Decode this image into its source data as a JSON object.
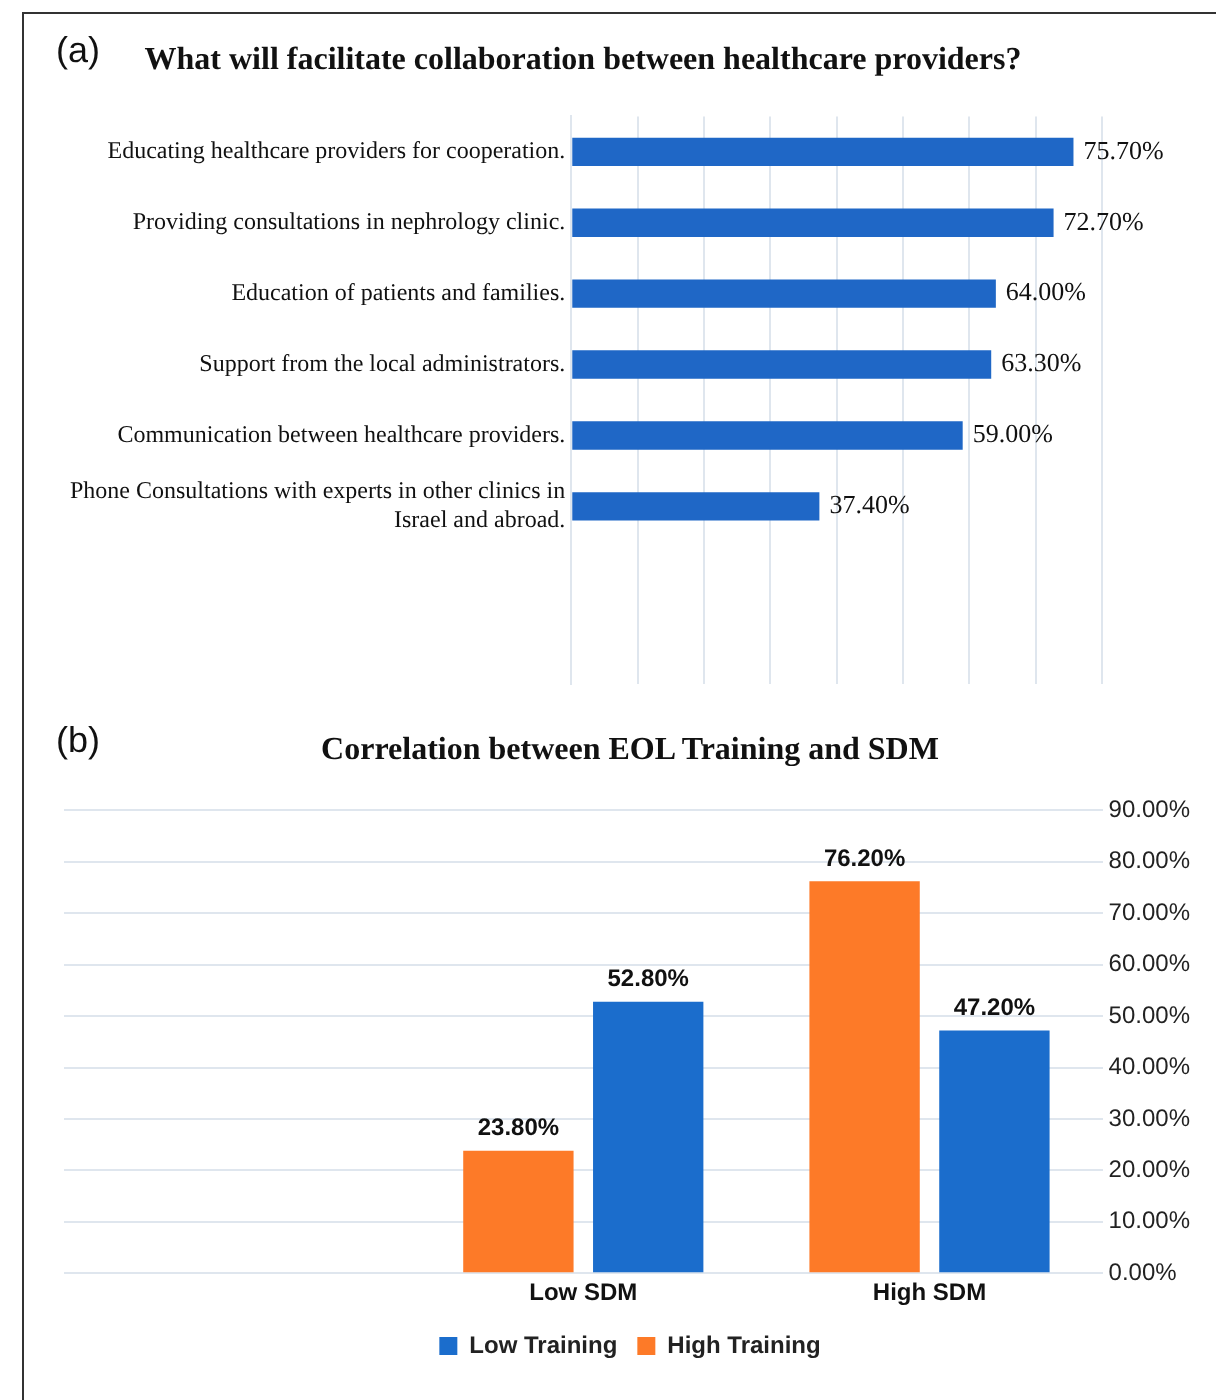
{
  "chart_data": [
    {
      "type": "bar",
      "orientation": "horizontal",
      "title": "What will facilitate collaboration between healthcare providers?",
      "annotations": [
        "(a)"
      ],
      "categories": [
        "Educating healthcare providers for cooperation.",
        "Providing consultations in nephrology clinic.",
        "Education of patients and families.",
        "Support from the local administrators.",
        "Communication between healthcare providers.",
        "Phone Consultations with experts in other clinics in Israel and abroad.",
        null,
        null
      ],
      "values": [
        75.7,
        72.7,
        64.0,
        63.3,
        59.0,
        37.4,
        null,
        null
      ],
      "color": "#1f67c6",
      "value_labels": [
        "75.70%",
        "72.70%",
        "64.00%",
        "63.30%",
        "59.00%",
        "37.40%",
        null,
        null
      ],
      "xlim": [
        0,
        80
      ],
      "xticks": [
        {
          "value": 0,
          "label": null
        },
        {
          "value": 10,
          "label": null
        },
        {
          "value": 20,
          "label": null
        },
        {
          "value": 30,
          "label": null
        },
        {
          "value": 40,
          "label": null
        },
        {
          "value": 50,
          "label": null
        },
        {
          "value": 60,
          "label": null
        },
        {
          "value": 70,
          "label": null
        },
        {
          "value": 80,
          "label": null
        }
      ],
      "tick_labels": "y",
      "grid": "x",
      "legend": false
    },
    {
      "type": "bar",
      "title": "Correlation between EOL Training and SDM",
      "annotations": [
        "(b)"
      ],
      "categories": [
        null,
        "Low SDM",
        "High SDM"
      ],
      "series": [
        {
          "name": "High Training",
          "color": "#fd7a28",
          "values": [
            null,
            23.8,
            76.2
          ],
          "value_labels": [
            null,
            "23.80%",
            "76.20%"
          ]
        },
        {
          "name": "Low Training",
          "color": "#1b6dcc",
          "values": [
            null,
            52.8,
            47.2
          ],
          "value_labels": [
            null,
            "52.80%",
            "47.20%"
          ]
        }
      ],
      "ylim": [
        0,
        90
      ],
      "yticks": [
        {
          "value": 0,
          "label": "0.00%"
        },
        {
          "value": 10,
          "label": "10.00%"
        },
        {
          "value": 20,
          "label": "20.00%"
        },
        {
          "value": 30,
          "label": "30.00%"
        },
        {
          "value": 40,
          "label": "40.00%"
        },
        {
          "value": 50,
          "label": "50.00%"
        },
        {
          "value": 60,
          "label": "60.00%"
        },
        {
          "value": 70,
          "label": "70.00%"
        },
        {
          "value": 80,
          "label": "80.00%"
        },
        {
          "value": 90,
          "label": "90.00%"
        }
      ],
      "grid": "y",
      "legend": "bottom"
    }
  ]
}
